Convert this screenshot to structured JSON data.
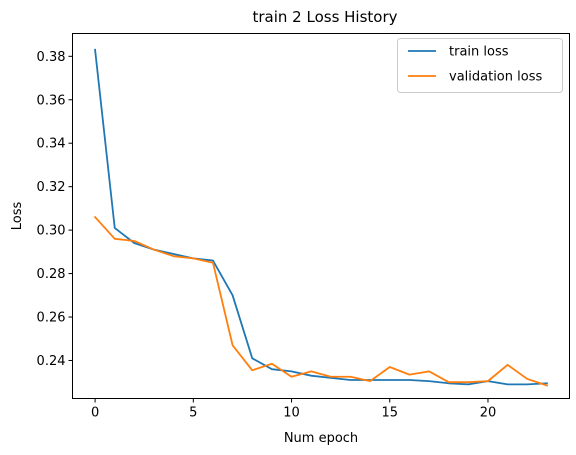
{
  "chart_data": {
    "type": "line",
    "title": "train 2 Loss History",
    "xlabel": "Num epoch",
    "ylabel": "Loss",
    "xlim": [
      -1.15,
      24.15
    ],
    "ylim": [
      0.2225,
      0.3905
    ],
    "xticks": [
      0,
      5,
      10,
      15,
      20
    ],
    "yticks": [
      0.24,
      0.26,
      0.28,
      0.3,
      0.32,
      0.34,
      0.36,
      0.38
    ],
    "grid": false,
    "legend_position": "top-right",
    "x": [
      0,
      1,
      2,
      3,
      4,
      5,
      6,
      7,
      8,
      9,
      10,
      11,
      12,
      13,
      14,
      15,
      16,
      17,
      18,
      19,
      20,
      21,
      22,
      23
    ],
    "series": [
      {
        "name": "train loss",
        "color": "#1f77b4",
        "values": [
          0.383,
          0.301,
          0.294,
          0.291,
          0.289,
          0.287,
          0.286,
          0.27,
          0.241,
          0.236,
          0.235,
          0.233,
          0.232,
          0.231,
          0.231,
          0.231,
          0.231,
          0.2305,
          0.2295,
          0.229,
          0.2305,
          0.229,
          0.229,
          0.2295
        ]
      },
      {
        "name": "validation loss",
        "color": "#ff7f0e",
        "values": [
          0.306,
          0.296,
          0.295,
          0.291,
          0.288,
          0.287,
          0.285,
          0.247,
          0.2355,
          0.2385,
          0.2325,
          0.235,
          0.2325,
          0.2325,
          0.2305,
          0.237,
          0.2335,
          0.235,
          0.23,
          0.23,
          0.2305,
          0.238,
          0.2315,
          0.2285
        ]
      }
    ]
  }
}
